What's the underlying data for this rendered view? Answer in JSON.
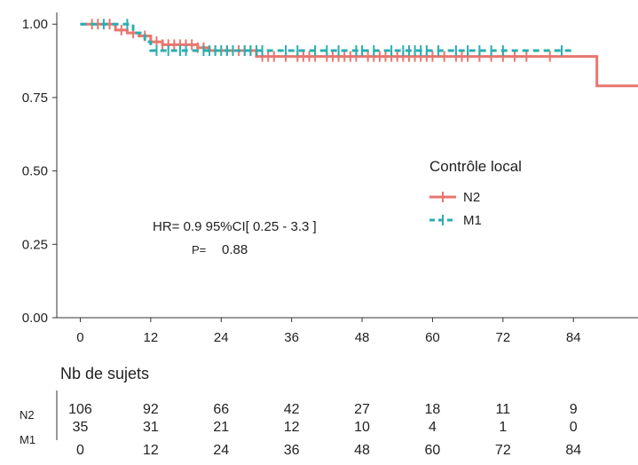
{
  "chart_data": {
    "type": "line",
    "chart_kind": "kaplan-meier",
    "xlim": [
      -4,
      95
    ],
    "ylim": [
      0,
      1.04
    ],
    "x_ticks": [
      0,
      12,
      24,
      36,
      48,
      60,
      72,
      84
    ],
    "y_ticks": [
      0.0,
      0.25,
      0.5,
      0.75,
      1.0
    ],
    "y_tick_labels": [
      "0.00",
      "0.25",
      "0.50",
      "0.75",
      "1.00"
    ],
    "grid": false,
    "legend": {
      "title": "Contrôle local",
      "position": "right"
    },
    "series": [
      {
        "name": "N2",
        "color": "#E8766E",
        "dash": false,
        "steps": [
          [
            0,
            1.0
          ],
          [
            6,
            0.98
          ],
          [
            8,
            0.97
          ],
          [
            10,
            0.96
          ],
          [
            12,
            0.94
          ],
          [
            14,
            0.93
          ],
          [
            20,
            0.92
          ],
          [
            22,
            0.91
          ],
          [
            30,
            0.89
          ],
          [
            88,
            0.89
          ],
          [
            88,
            0.79
          ],
          [
            95,
            0.79
          ]
        ],
        "censor_x": [
          2,
          3,
          5,
          7,
          9,
          11,
          13,
          14,
          15,
          16,
          17,
          18,
          19,
          20,
          21,
          23,
          25,
          26,
          27,
          28,
          29,
          31,
          32,
          33,
          35,
          37,
          38,
          39,
          40,
          42,
          43,
          44,
          45,
          46,
          47,
          49,
          50,
          51,
          52,
          53,
          54,
          55,
          56,
          57,
          58,
          59,
          60,
          62,
          64,
          65,
          66,
          68,
          70,
          72,
          74,
          76,
          80
        ]
      },
      {
        "name": "M1",
        "color": "#2AAEB0",
        "dash": true,
        "steps": [
          [
            0,
            1.0
          ],
          [
            9,
            0.97
          ],
          [
            11,
            0.94
          ],
          [
            12,
            0.91
          ],
          [
            22,
            0.91
          ],
          [
            84,
            0.91
          ]
        ],
        "censor_x": [
          4,
          8,
          13,
          15,
          17,
          18,
          21,
          22,
          23,
          24,
          25,
          26,
          28,
          29,
          30,
          31,
          35,
          37,
          40,
          42,
          44,
          47,
          48,
          50,
          53,
          55,
          56,
          57,
          58,
          59,
          61,
          64,
          66,
          68,
          70,
          72,
          82
        ]
      }
    ],
    "annotations": {
      "hr": "HR= 0.9  95%CI[ 0.25 - 3.3 ]",
      "p_label": "P=",
      "p_value": "0.88"
    },
    "risk_table": {
      "title": "Nb de sujets",
      "times": [
        0,
        12,
        24,
        36,
        48,
        60,
        72,
        84
      ],
      "time_labels": [
        "0",
        "12",
        "24",
        "36",
        "48",
        "60",
        "72",
        "84"
      ],
      "groups": [
        {
          "name": "N2",
          "counts": [
            "106",
            "92",
            "66",
            "42",
            "27",
            "18",
            "11",
            "9"
          ]
        },
        {
          "name": "M1",
          "counts": [
            "35",
            "31",
            "21",
            "12",
            "10",
            "4",
            "1",
            "0"
          ]
        }
      ]
    }
  }
}
